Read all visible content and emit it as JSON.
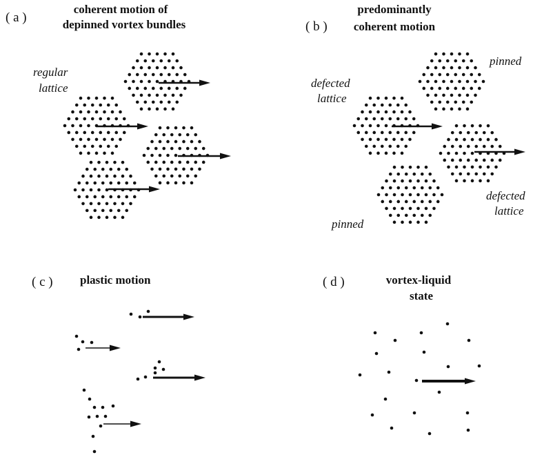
{
  "panels": [
    {
      "label": "( a )",
      "title": [
        "coherent motion of",
        "depinned vortex bundles"
      ],
      "annotations": [
        "regular",
        "lattice"
      ]
    },
    {
      "label": "( b )",
      "title": [
        "predominantly",
        "coherent motion"
      ],
      "annotations": [
        "defected",
        "lattice",
        "pinned",
        "pinned",
        "defected",
        "lattice"
      ]
    },
    {
      "label": "( c )",
      "title": [
        "plastic motion"
      ]
    },
    {
      "label": "( d )",
      "title": [
        "vortex-liquid",
        "state"
      ]
    }
  ]
}
